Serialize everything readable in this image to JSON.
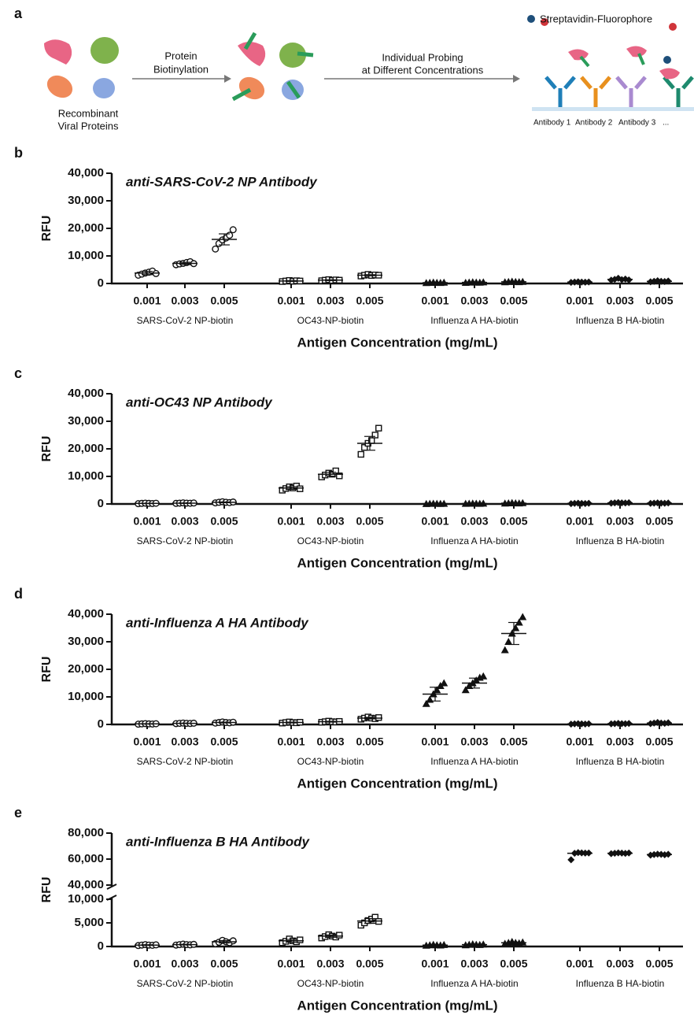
{
  "panel_a": {
    "letter": "a",
    "proteins_label": [
      "Recombinant",
      "Viral Proteins"
    ],
    "step1_label": [
      "Protein",
      "Biotinylation"
    ],
    "step2_label": [
      "Individual Probing",
      "at Different Concentrations"
    ],
    "reagent_label": "Streptavidin-Fluorophore",
    "antibody_labels": [
      "Antibody 1",
      "Antibody 2",
      "Antibody 3",
      "..."
    ]
  },
  "chart_data": [
    {
      "type": "dotplot",
      "letter": "b",
      "title": "anti-SARS-CoV-2 NP Antibody",
      "ylabel": "RFU",
      "xlabel": "Antigen Concentration (mg/mL)",
      "categories": [
        "0.001",
        "0.003",
        "0.005",
        "0.001",
        "0.003",
        "0.005",
        "0.001",
        "0.003",
        "0.005",
        "0.001",
        "0.003",
        "0.005"
      ],
      "groups": [
        "SARS-CoV-2 NP-biotin",
        "OC43-NP-biotin",
        "Influenza A HA-biotin",
        "Influenza B HA-biotin"
      ],
      "markers": [
        "circle-open",
        "square-open",
        "triangle",
        "diamond"
      ],
      "color": "#111111",
      "ylim": [
        0,
        40000
      ],
      "yticks": [
        0,
        {
          "value": 10000,
          "label": "10,000"
        },
        {
          "value": 20000,
          "label": "20,000"
        },
        {
          "value": 30000,
          "label": "30,000"
        },
        {
          "value": 40000,
          "label": "40,000"
        }
      ],
      "series": [
        {
          "values": [
            3800,
            7300,
            16000,
            900,
            1200,
            3000,
            300,
            400,
            600,
            500,
            1500,
            800
          ],
          "errors": [
            600,
            400,
            2000,
            150,
            150,
            200,
            80,
            80,
            80,
            80,
            250,
            150
          ],
          "points": [
            [
              3000,
              3400,
              3800,
              4100,
              4500,
              3600
            ],
            [
              6800,
              7100,
              7300,
              7600,
              7900,
              7200
            ],
            [
              12500,
              14500,
              15800,
              16500,
              17500,
              19500
            ],
            [
              700,
              900,
              1100,
              800,
              1000,
              900
            ],
            [
              1000,
              1200,
              1400,
              1100,
              1300,
              1200
            ],
            [
              2700,
              3000,
              3300,
              2900,
              3100,
              3000
            ],
            [
              200,
              300,
              400,
              300,
              250,
              350
            ],
            [
              300,
              400,
              500,
              400,
              350,
              450
            ],
            [
              500,
              600,
              700,
              600,
              550,
              650
            ],
            [
              400,
              500,
              600,
              500,
              450,
              550
            ],
            [
              1200,
              1500,
              1900,
              1400,
              1600,
              1300
            ],
            [
              600,
              800,
              1000,
              800,
              700,
              900
            ]
          ]
        }
      ]
    },
    {
      "type": "dotplot",
      "letter": "c",
      "title": "anti-OC43 NP Antibody",
      "ylabel": "RFU",
      "xlabel": "Antigen Concentration (mg/mL)",
      "categories": [
        "0.001",
        "0.003",
        "0.005",
        "0.001",
        "0.003",
        "0.005",
        "0.001",
        "0.003",
        "0.005",
        "0.001",
        "0.003",
        "0.005"
      ],
      "groups": [
        "SARS-CoV-2 NP-biotin",
        "OC43-NP-biotin",
        "Influenza A HA-biotin",
        "Influenza B HA-biotin"
      ],
      "markers": [
        "circle-open",
        "square-open",
        "triangle",
        "diamond"
      ],
      "color": "#111111",
      "ylim": [
        0,
        40000
      ],
      "yticks": [
        0,
        {
          "value": 10000,
          "label": "10,000"
        },
        {
          "value": 20000,
          "label": "20,000"
        },
        {
          "value": 30000,
          "label": "30,000"
        },
        {
          "value": 40000,
          "label": "40,000"
        }
      ],
      "series": [
        {
          "values": [
            200,
            300,
            600,
            5800,
            10800,
            22000,
            100,
            150,
            300,
            200,
            400,
            300
          ],
          "errors": [
            80,
            80,
            150,
            500,
            700,
            2500,
            40,
            40,
            80,
            80,
            80,
            80
          ],
          "points": [
            [
              100,
              200,
              300,
              200,
              150,
              250
            ],
            [
              200,
              300,
              400,
              300,
              250,
              350
            ],
            [
              400,
              600,
              800,
              600,
              500,
              700
            ],
            [
              5000,
              5600,
              6200,
              5800,
              6500,
              5500
            ],
            [
              9800,
              10500,
              11200,
              10800,
              12000,
              10200
            ],
            [
              18000,
              20500,
              22000,
              23000,
              25000,
              27500
            ],
            [
              50,
              100,
              150,
              100,
              80,
              120
            ],
            [
              100,
              150,
              200,
              150,
              120,
              180
            ],
            [
              200,
              300,
              400,
              300,
              250,
              350
            ],
            [
              100,
              200,
              300,
              200,
              150,
              250
            ],
            [
              300,
              400,
              500,
              400,
              350,
              450
            ],
            [
              200,
              300,
              400,
              300,
              250,
              350
            ]
          ]
        }
      ]
    },
    {
      "type": "dotplot",
      "letter": "d",
      "title": "anti-Influenza A HA Antibody",
      "ylabel": "RFU",
      "xlabel": "Antigen Concentration (mg/mL)",
      "categories": [
        "0.001",
        "0.003",
        "0.005",
        "0.001",
        "0.003",
        "0.005",
        "0.001",
        "0.003",
        "0.005",
        "0.001",
        "0.003",
        "0.005"
      ],
      "groups": [
        "SARS-CoV-2 NP-biotin",
        "OC43-NP-biotin",
        "Influenza A HA-biotin",
        "Influenza B HA-biotin"
      ],
      "markers": [
        "circle-open",
        "square-open",
        "triangle",
        "diamond"
      ],
      "color": "#111111",
      "ylim": [
        0,
        40000
      ],
      "yticks": [
        0,
        {
          "value": 10000,
          "label": "10,000"
        },
        {
          "value": 20000,
          "label": "20,000"
        },
        {
          "value": 30000,
          "label": "30,000"
        },
        {
          "value": 40000,
          "label": "40,000"
        }
      ],
      "series": [
        {
          "values": [
            200,
            400,
            700,
            700,
            1000,
            2300,
            11000,
            15000,
            33000,
            200,
            300,
            500
          ],
          "errors": [
            80,
            80,
            150,
            150,
            150,
            300,
            2500,
            1800,
            4000,
            80,
            80,
            150
          ],
          "points": [
            [
              100,
              200,
              300,
              200,
              150,
              250
            ],
            [
              300,
              400,
              500,
              400,
              350,
              450
            ],
            [
              500,
              700,
              900,
              700,
              600,
              800
            ],
            [
              500,
              700,
              900,
              700,
              600,
              800
            ],
            [
              800,
              1000,
              1200,
              1000,
              900,
              1100
            ],
            [
              1900,
              2300,
              2700,
              2300,
              2100,
              2500
            ],
            [
              7500,
              9000,
              11000,
              12500,
              14000,
              15000
            ],
            [
              12500,
              14000,
              15000,
              16000,
              17000,
              17500
            ],
            [
              27000,
              30000,
              33000,
              35000,
              37000,
              39000
            ],
            [
              100,
              200,
              300,
              200,
              150,
              250
            ],
            [
              200,
              300,
              400,
              300,
              250,
              350
            ],
            [
              300,
              500,
              700,
              500,
              400,
              600
            ]
          ]
        }
      ]
    },
    {
      "type": "dotplot",
      "letter": "e",
      "title": "anti-Influenza B HA Antibody",
      "ylabel": "RFU",
      "xlabel": "Antigen Concentration (mg/mL)",
      "categories": [
        "0.001",
        "0.003",
        "0.005",
        "0.001",
        "0.003",
        "0.005",
        "0.001",
        "0.003",
        "0.005",
        "0.001",
        "0.003",
        "0.005"
      ],
      "groups": [
        "SARS-CoV-2 NP-biotin",
        "OC43-NP-biotin",
        "Influenza A HA-biotin",
        "Influenza B HA-biotin"
      ],
      "markers": [
        "circle-open",
        "square-open",
        "triangle",
        "diamond"
      ],
      "color": "#111111",
      "ysegments": [
        {
          "ylim": [
            0,
            10000
          ],
          "yticks": [
            0,
            {
              "value": 5000,
              "label": "5,000"
            },
            {
              "value": 10000,
              "label": "10,000"
            }
          ]
        },
        {
          "ylim": [
            40000,
            80000
          ],
          "yticks": [
            {
              "value": 40000,
              "label": "40,000"
            },
            {
              "value": 60000,
              "label": "60,000"
            },
            {
              "value": 80000,
              "label": "80,000"
            }
          ]
        }
      ],
      "series": [
        {
          "values": [
            300,
            400,
            1000,
            1200,
            2200,
            5400,
            300,
            400,
            800,
            64500,
            64500,
            63500
          ],
          "errors": [
            80,
            80,
            250,
            300,
            250,
            500,
            80,
            80,
            150,
            800,
            300,
            300
          ],
          "points": [
            [
              200,
              300,
              400,
              300,
              250,
              350
            ],
            [
              300,
              400,
              500,
              400,
              350,
              450
            ],
            [
              600,
              900,
              1300,
              1000,
              800,
              1200
            ],
            [
              800,
              1100,
              1600,
              1200,
              1000,
              1400
            ],
            [
              1800,
              2100,
              2500,
              2200,
              2000,
              2400
            ],
            [
              4500,
              5000,
              5500,
              5800,
              6200,
              5300
            ],
            [
              200,
              300,
              400,
              300,
              250,
              350
            ],
            [
              300,
              400,
              500,
              400,
              350,
              450
            ],
            [
              600,
              800,
              1000,
              800,
              700,
              900
            ],
            [
              59500,
              64500,
              65000,
              64800,
              64600,
              64700
            ],
            [
              64200,
              64500,
              64800,
              64600,
              64400,
              64700
            ],
            [
              63000,
              63500,
              63800,
              63600,
              63300,
              63700
            ]
          ]
        }
      ]
    }
  ]
}
